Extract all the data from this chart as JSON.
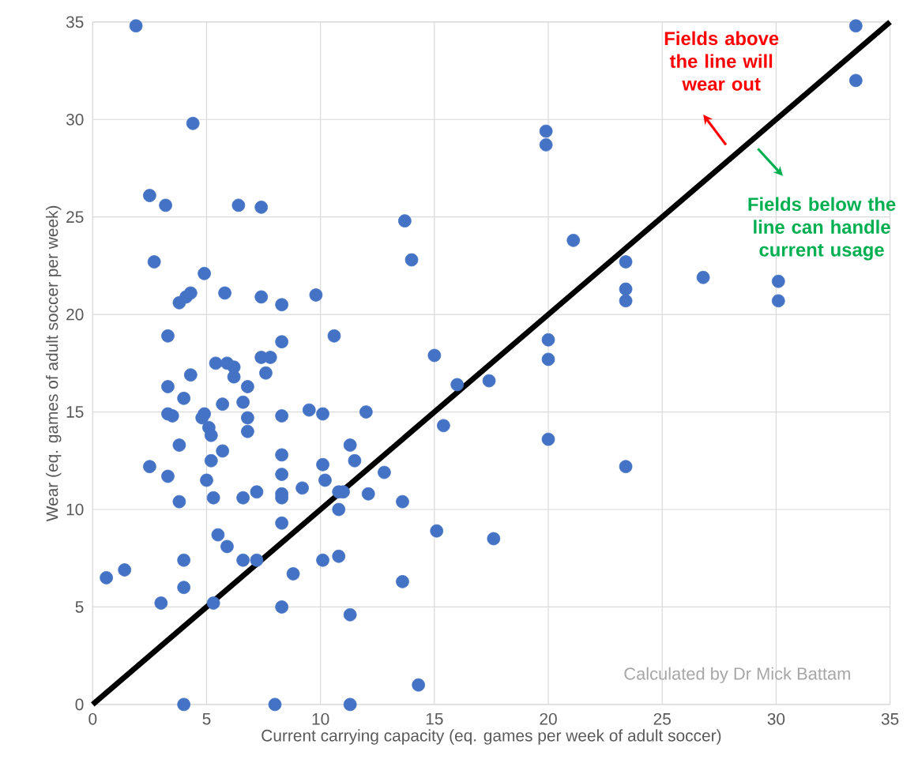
{
  "chart_data": {
    "type": "scatter",
    "xlabel": "Current carrying capacity (eq. games per week of adult soccer)",
    "ylabel": "Wear (eq. games of adult soccer per week)",
    "xlim": [
      0,
      35
    ],
    "ylim": [
      0,
      35
    ],
    "xticks": [
      0,
      5,
      10,
      15,
      20,
      25,
      30,
      35
    ],
    "yticks": [
      0,
      5,
      10,
      15,
      20,
      25,
      30,
      35
    ],
    "grid": true,
    "annotations": [
      "Fields above the line will wear out",
      "Fields below the line can handle current usage",
      "Calculated by Dr Mick Battam"
    ],
    "series": [
      {
        "color": "#4472c4",
        "marker": "circle",
        "x": [
          1.9,
          4.4,
          2.5,
          3.2,
          6.4,
          7.4,
          13.7,
          14.0,
          2.7,
          4.9,
          3.8,
          4.1,
          4.3,
          5.8,
          7.4,
          8.3,
          9.8,
          3.3,
          10.6,
          8.3,
          5.4,
          5.9,
          6.2,
          6.2,
          7.4,
          7.8,
          7.6,
          4.3,
          3.3,
          6.8,
          4.0,
          5.7,
          6.6,
          3.3,
          3.5,
          4.9,
          4.8,
          6.8,
          5.1,
          5.2,
          6.8,
          8.3,
          9.5,
          10.1,
          12.0,
          15.0,
          15.4,
          3.8,
          5.7,
          5.2,
          2.5,
          3.3,
          5.0,
          8.3,
          8.3,
          10.1,
          10.2,
          11.3,
          11.5,
          12.8,
          3.8,
          5.3,
          6.6,
          7.2,
          8.3,
          8.3,
          9.2,
          10.8,
          11.0,
          12.1,
          13.6,
          10.8,
          8.3,
          15.1,
          5.5,
          5.9,
          6.6,
          7.2,
          10.1,
          10.8,
          4.0,
          1.4,
          0.6,
          8.8,
          13.6,
          4.0,
          3.0,
          5.3,
          8.3,
          11.3,
          14.3,
          4.0,
          8.0,
          11.3,
          33.5,
          33.5,
          19.9,
          19.9,
          21.1,
          23.4,
          23.4,
          23.4,
          26.8,
          30.1,
          30.1,
          20.0,
          20.0,
          16.0,
          17.4,
          20.0,
          23.4,
          17.6
        ],
        "values": [
          34.8,
          29.8,
          26.1,
          25.6,
          25.6,
          25.5,
          24.8,
          22.8,
          22.7,
          22.1,
          20.6,
          20.9,
          21.1,
          21.1,
          20.9,
          20.5,
          21.0,
          18.9,
          18.9,
          18.6,
          17.5,
          17.5,
          17.3,
          16.8,
          17.8,
          17.8,
          17.0,
          16.9,
          16.3,
          16.3,
          15.7,
          15.4,
          15.5,
          14.9,
          14.8,
          14.9,
          14.7,
          14.7,
          14.2,
          13.8,
          14.0,
          14.8,
          15.1,
          14.9,
          15.0,
          17.9,
          14.3,
          13.3,
          13.0,
          12.5,
          12.2,
          11.7,
          11.5,
          12.8,
          11.8,
          12.3,
          11.5,
          13.3,
          12.5,
          11.9,
          10.4,
          10.6,
          10.6,
          10.9,
          10.8,
          10.6,
          11.1,
          10.9,
          10.9,
          10.8,
          10.4,
          10.0,
          9.3,
          8.9,
          8.7,
          8.1,
          7.4,
          7.4,
          7.4,
          7.6,
          7.4,
          6.9,
          6.5,
          6.7,
          6.3,
          6.0,
          5.2,
          5.2,
          5.0,
          4.6,
          1.0,
          0,
          0,
          0,
          34.8,
          32.0,
          29.4,
          28.7,
          23.8,
          22.7,
          21.3,
          20.7,
          21.9,
          21.7,
          20.7,
          18.7,
          17.7,
          16.4,
          16.6,
          13.6,
          12.2,
          8.5
        ]
      },
      {
        "type": "line",
        "color": "#000000",
        "x": [
          0,
          35
        ],
        "values": [
          0,
          35
        ]
      }
    ]
  }
}
